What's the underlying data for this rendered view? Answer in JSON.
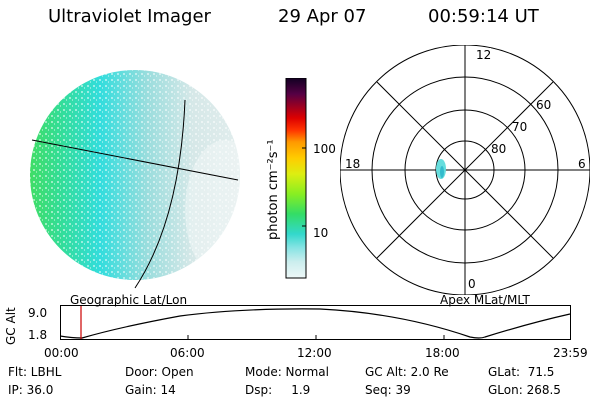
{
  "header": {
    "title": "Ultraviolet Imager",
    "date": "29 Apr 07",
    "time": "00:59:14 UT"
  },
  "colorbar": {
    "unit_label": "photon cm⁻²s⁻¹",
    "ticks": [
      "100",
      "10"
    ]
  },
  "polar_plot": {
    "mlt_labels": [
      "12",
      "18",
      "6",
      "0"
    ],
    "lat_labels": [
      "60",
      "70",
      "80"
    ]
  },
  "panel_labels": {
    "left": "Geographic Lat/Lon",
    "right": "Apex MLat/MLT"
  },
  "altitude_plot": {
    "ylabel": "GC Alt",
    "y_ticks": [
      "9.0",
      "1.8"
    ],
    "x_ticks": [
      "00:00",
      "06:00",
      "12:00",
      "18:00",
      "23:59"
    ],
    "marker_time": "00:59"
  },
  "info": {
    "flt": "Flt: LBHL",
    "ip": "IP: 36.0",
    "door": "Door: Open",
    "gain": "Gain: 14",
    "mode": "Mode: Normal",
    "dsp": "Dsp:     1.9",
    "gcalt": "GC Alt: 2.0 Re",
    "seq": "Seq: 39",
    "glat": "GLat:  71.5",
    "glon": "GLon: 268.5"
  },
  "colors": {
    "green": "#44dd44",
    "cyan": "#33dddd",
    "pale": "#cfe6e6",
    "marker": "#cc0000"
  }
}
